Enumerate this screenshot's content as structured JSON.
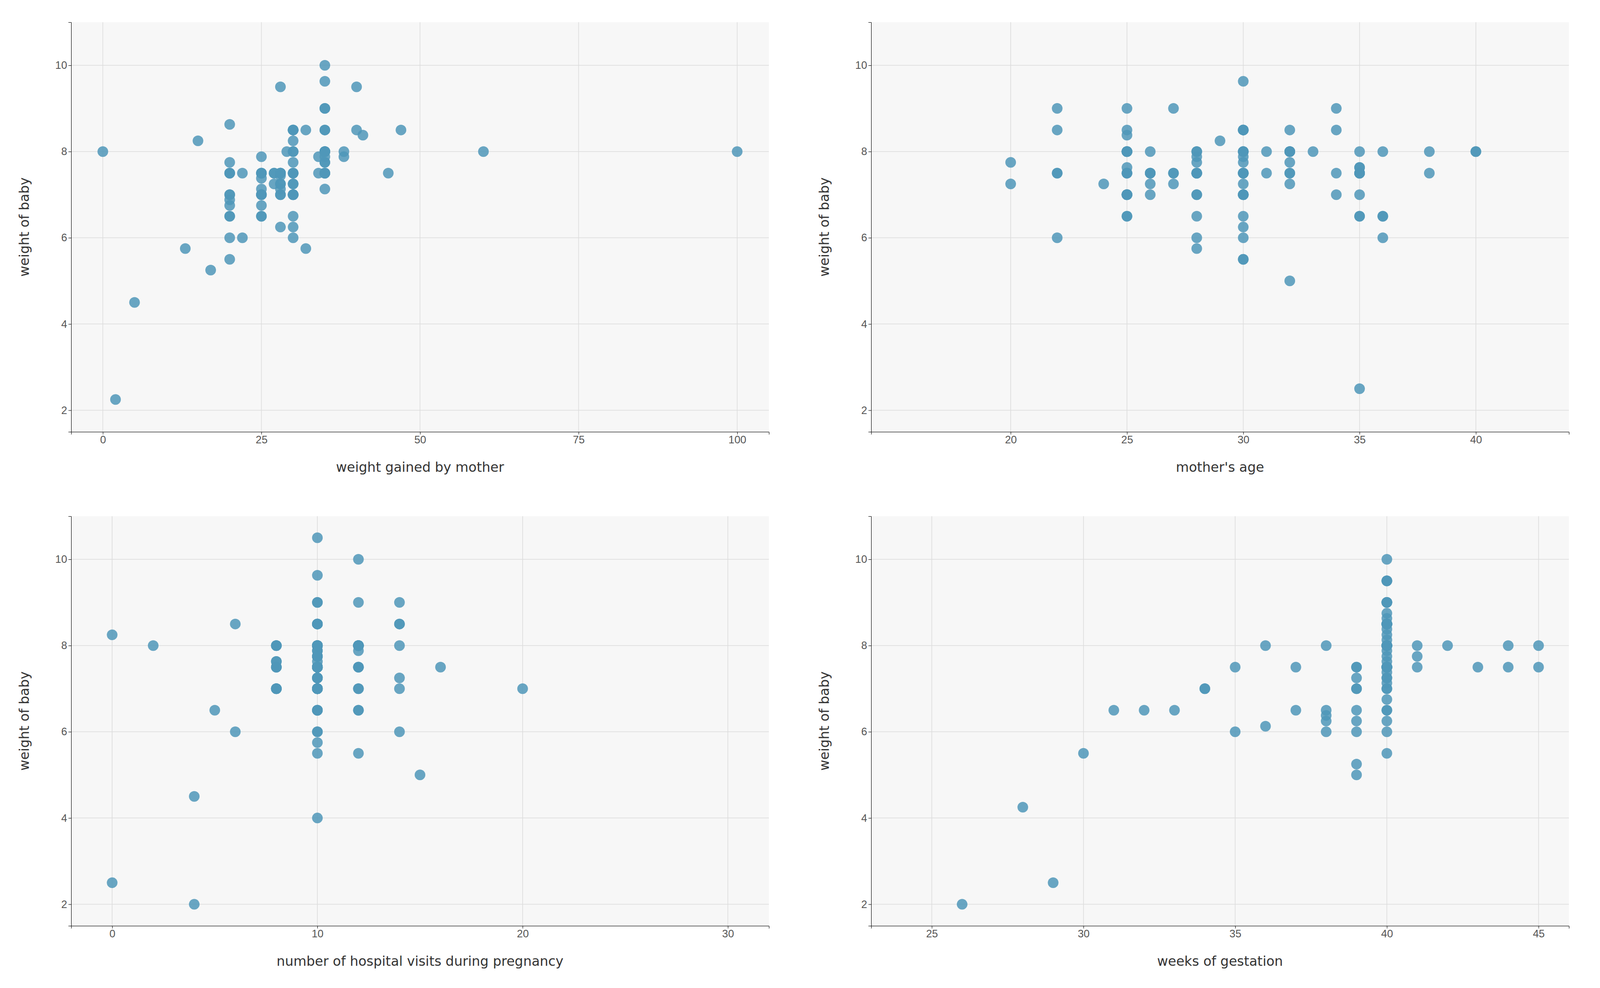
{
  "chart_data": [
    {
      "type": "scatter",
      "xlabel": "weight gained by mother",
      "ylabel": "weight of baby",
      "color": "#4f96b8",
      "grid": true,
      "xlim": [
        -5,
        105
      ],
      "ylim": [
        1.5,
        11
      ],
      "xticks": [
        0,
        25,
        50,
        75,
        100
      ],
      "yticks": [
        2,
        4,
        6,
        8,
        10
      ],
      "x": [
        38,
        20,
        25,
        29,
        38,
        34,
        27,
        32,
        28,
        34,
        32,
        25,
        28,
        35,
        27,
        35,
        15,
        30,
        30,
        41,
        20,
        30,
        28,
        30,
        35,
        22,
        28,
        47,
        30,
        30,
        25,
        22,
        28,
        25,
        17,
        30,
        35,
        20,
        28,
        20,
        35,
        25,
        28,
        30,
        35,
        13,
        30,
        27,
        20,
        28,
        35,
        25,
        20,
        35,
        30,
        25,
        30,
        35,
        20,
        25,
        30,
        5,
        2,
        0,
        30,
        20,
        25,
        35,
        28,
        35,
        30,
        30,
        28,
        25,
        35,
        20,
        35,
        20,
        20,
        30,
        40,
        28,
        30,
        35,
        25,
        35,
        25,
        60,
        20,
        35,
        45,
        30,
        35,
        28,
        30,
        20,
        30,
        40,
        35,
        100
      ],
      "y": [
        8.0,
        7.5,
        7.13,
        8.0,
        7.88,
        7.5,
        7.5,
        5.75,
        7.44,
        7.88,
        8.5,
        7.5,
        7.5,
        8.0,
        7.25,
        9.63,
        8.25,
        8.0,
        6.5,
        8.38,
        6.88,
        8.0,
        7.25,
        7.0,
        7.13,
        6.0,
        7.0,
        8.5,
        7.5,
        7.25,
        7.38,
        7.5,
        6.25,
        7.0,
        5.25,
        7.0,
        7.88,
        5.5,
        7.25,
        6.5,
        7.5,
        7.5,
        7.13,
        7.5,
        7.75,
        5.75,
        8.5,
        7.5,
        6.5,
        7.0,
        8.0,
        7.0,
        6.0,
        8.0,
        7.25,
        6.75,
        7.75,
        8.0,
        7.0,
        7.5,
        8.25,
        4.5,
        2.25,
        8.0,
        6.0,
        7.0,
        7.0,
        7.5,
        7.5,
        7.75,
        8.5,
        7.5,
        7.5,
        6.5,
        7.5,
        7.5,
        7.5,
        6.75,
        7.75,
        7.0,
        9.5,
        7.5,
        6.25,
        10.0,
        7.88,
        9.0,
        6.5,
        8.0,
        8.63,
        8.5,
        7.5,
        7.0,
        9.0,
        9.5,
        8.5,
        7.5,
        8.5,
        8.5,
        8.5,
        8.0
      ]
    },
    {
      "type": "scatter",
      "xlabel": "mother's age",
      "ylabel": "weight of baby",
      "color": "#4f96b8",
      "grid": true,
      "xlim": [
        14,
        44
      ],
      "ylim": [
        1.5,
        11
      ],
      "xticks": [
        20,
        25,
        30,
        35,
        40
      ],
      "yticks": [
        2,
        4,
        6,
        8,
        10
      ],
      "x": [
        25,
        32,
        28,
        25,
        32,
        29,
        27,
        30,
        28,
        25,
        30,
        24,
        32,
        36,
        25,
        30,
        32,
        28,
        26,
        34,
        25,
        22,
        30,
        28,
        36,
        25,
        35,
        30,
        26,
        20,
        28,
        33,
        30,
        27,
        22,
        35,
        30,
        25,
        36,
        30,
        22,
        31,
        28,
        31,
        25,
        30,
        35,
        20,
        22,
        25,
        30,
        30,
        28,
        38,
        30,
        22,
        25,
        26,
        27,
        32,
        25,
        30,
        32,
        28,
        30,
        34,
        36,
        25,
        35,
        40,
        28,
        25,
        35,
        26,
        30,
        35,
        27,
        30,
        25,
        28,
        32,
        34,
        25,
        32,
        35,
        25,
        30,
        35,
        28,
        30,
        34,
        30,
        35,
        38,
        26,
        30,
        28,
        25,
        30,
        32,
        26,
        35,
        25,
        30,
        40,
        28,
        25,
        30,
        32,
        35,
        28,
        30,
        30
      ],
      "y": [
        8.0,
        8.0,
        7.5,
        6.5,
        7.25,
        8.25,
        7.5,
        9.63,
        8.0,
        8.5,
        8.0,
        7.25,
        8.0,
        6.0,
        8.38,
        7.5,
        7.5,
        7.75,
        7.5,
        9.0,
        7.0,
        7.5,
        5.5,
        6.0,
        8.0,
        7.0,
        7.63,
        8.5,
        7.5,
        7.25,
        5.75,
        8.0,
        6.5,
        7.5,
        8.5,
        7.5,
        5.5,
        9.0,
        6.5,
        7.25,
        7.5,
        7.5,
        8.0,
        8.0,
        7.0,
        7.88,
        7.5,
        7.75,
        9.0,
        8.0,
        7.0,
        7.5,
        7.0,
        7.5,
        8.5,
        6.0,
        7.63,
        8.0,
        7.25,
        8.0,
        8.0,
        7.5,
        7.5,
        7.88,
        7.75,
        8.5,
        6.5,
        6.5,
        7.0,
        8.0,
        7.5,
        8.0,
        7.5,
        7.25,
        7.0,
        6.5,
        9.0,
        7.0,
        7.5,
        7.5,
        8.5,
        7.5,
        7.0,
        7.75,
        7.63,
        8.0,
        7.5,
        6.5,
        7.5,
        8.5,
        7.0,
        7.0,
        2.5,
        8.0,
        7.5,
        8.0,
        7.0,
        7.0,
        8.5,
        5.0,
        7.0,
        8.0,
        7.5,
        7.5,
        8.0,
        6.5,
        7.5,
        6.25,
        8.0,
        7.5,
        7.5,
        6.0,
        8.0
      ]
    },
    {
      "type": "scatter",
      "xlabel": "number of hospital visits during pregnancy",
      "ylabel": "weight of baby",
      "color": "#4f96b8",
      "grid": true,
      "xlim": [
        -2,
        32
      ],
      "ylim": [
        1.5,
        11
      ],
      "xticks": [
        0,
        10,
        20,
        30
      ],
      "yticks": [
        2,
        4,
        6,
        8,
        10
      ],
      "x": [
        10,
        12,
        14,
        10,
        12,
        10,
        10,
        8,
        12,
        10,
        10,
        10,
        12,
        10,
        10,
        12,
        10,
        10,
        8,
        14,
        10,
        10,
        6,
        10,
        12,
        10,
        8,
        10,
        10,
        10,
        10,
        8,
        10,
        12,
        10,
        10,
        12,
        8,
        10,
        14,
        10,
        10,
        12,
        10,
        10,
        10,
        8,
        10,
        10,
        12,
        10,
        4,
        10,
        10,
        6,
        14,
        10,
        12,
        10,
        10,
        8,
        10,
        16,
        10,
        10,
        14,
        10,
        12,
        8,
        10,
        10,
        8,
        10,
        10,
        12,
        10,
        10,
        10,
        10,
        0,
        10,
        12,
        14,
        10,
        8,
        14,
        10,
        12,
        10,
        10,
        8,
        10,
        4,
        10,
        10,
        10,
        10,
        5,
        10,
        15,
        10,
        8,
        12,
        0,
        10,
        10,
        2,
        10,
        10,
        10,
        20,
        12,
        10
      ],
      "y": [
        8.0,
        7.0,
        8.5,
        9.63,
        8.0,
        7.5,
        7.25,
        7.5,
        8.0,
        8.5,
        7.5,
        7.5,
        7.88,
        7.5,
        7.0,
        9.0,
        6.0,
        7.75,
        7.5,
        9.0,
        5.5,
        7.5,
        6.0,
        7.25,
        8.0,
        7.0,
        7.63,
        8.5,
        7.5,
        7.25,
        5.75,
        8.0,
        6.5,
        7.5,
        8.5,
        7.5,
        5.5,
        7.0,
        6.5,
        7.25,
        7.5,
        7.5,
        8.0,
        8.0,
        7.0,
        7.88,
        7.5,
        7.75,
        9.0,
        8.0,
        7.0,
        2.0,
        7.0,
        7.5,
        8.5,
        6.0,
        7.63,
        8.0,
        7.25,
        8.0,
        8.0,
        7.5,
        7.5,
        7.88,
        7.75,
        8.5,
        6.5,
        6.5,
        7.0,
        8.0,
        7.5,
        8.0,
        7.5,
        7.25,
        7.0,
        6.5,
        9.0,
        7.0,
        7.5,
        8.25,
        8.5,
        7.5,
        7.0,
        7.75,
        7.63,
        8.0,
        7.5,
        6.5,
        7.5,
        8.5,
        7.0,
        7.0,
        4.5,
        8.0,
        7.5,
        8.0,
        7.0,
        6.5,
        8.0,
        5.0,
        7.0,
        7.0,
        7.5,
        2.5,
        7.5,
        6.0,
        8.0,
        4.0,
        10.5,
        7.5,
        7.0,
        10.0,
        7.5
      ]
    },
    {
      "type": "scatter",
      "xlabel": "weeks of gestation",
      "ylabel": "weight of baby",
      "color": "#4f96b8",
      "grid": true,
      "xlim": [
        23,
        46
      ],
      "ylim": [
        1.5,
        11
      ],
      "xticks": [
        25,
        30,
        35,
        40,
        45
      ],
      "yticks": [
        2,
        4,
        6,
        8,
        10
      ],
      "x": [
        26,
        28,
        29,
        30,
        31,
        32,
        33,
        34,
        35,
        36,
        37,
        38,
        38,
        38,
        38,
        39,
        39,
        39,
        39,
        39,
        39,
        39,
        39,
        39,
        40,
        40,
        40,
        40,
        40,
        40,
        40,
        40,
        40,
        40,
        40,
        40,
        40,
        40,
        40,
        40,
        40,
        40,
        40,
        40,
        40,
        40,
        40,
        40,
        40,
        40,
        40,
        40,
        40,
        40,
        40,
        40,
        40,
        40,
        40,
        40,
        40,
        40,
        40,
        40,
        40,
        40,
        41,
        41,
        41,
        42,
        43,
        44,
        44,
        45,
        45,
        34,
        35,
        36,
        37,
        38,
        39,
        40,
        40,
        40,
        40,
        40,
        40,
        40,
        40,
        40,
        40,
        40,
        40,
        40,
        40,
        40,
        40,
        40,
        40,
        40
      ],
      "y": [
        2.0,
        4.25,
        2.5,
        5.5,
        6.5,
        6.5,
        6.5,
        7.0,
        6.0,
        6.13,
        6.5,
        6.0,
        6.25,
        6.38,
        6.5,
        5.0,
        5.25,
        6.0,
        6.25,
        6.5,
        7.0,
        7.0,
        7.25,
        7.5,
        5.5,
        6.0,
        6.25,
        6.5,
        6.5,
        6.75,
        7.0,
        7.0,
        7.13,
        7.25,
        7.25,
        7.38,
        7.5,
        7.5,
        7.5,
        7.5,
        7.5,
        7.5,
        7.5,
        7.5,
        7.63,
        7.75,
        7.88,
        8.0,
        8.0,
        8.0,
        8.0,
        8.0,
        8.13,
        8.25,
        8.38,
        8.5,
        8.5,
        8.5,
        8.5,
        8.5,
        8.63,
        8.75,
        9.0,
        9.0,
        9.5,
        10.0,
        7.5,
        7.75,
        8.0,
        8.0,
        7.5,
        7.5,
        8.0,
        7.5,
        8.0,
        7.0,
        7.5,
        8.0,
        7.5,
        8.0,
        7.5,
        7.5,
        7.5,
        8.0,
        8.5,
        8.0,
        8.5,
        7.5,
        9.0,
        9.5,
        9.0,
        8.5,
        8.0,
        7.5,
        9.5,
        8.5,
        8.5,
        8.0,
        8.5,
        7.5
      ]
    }
  ]
}
